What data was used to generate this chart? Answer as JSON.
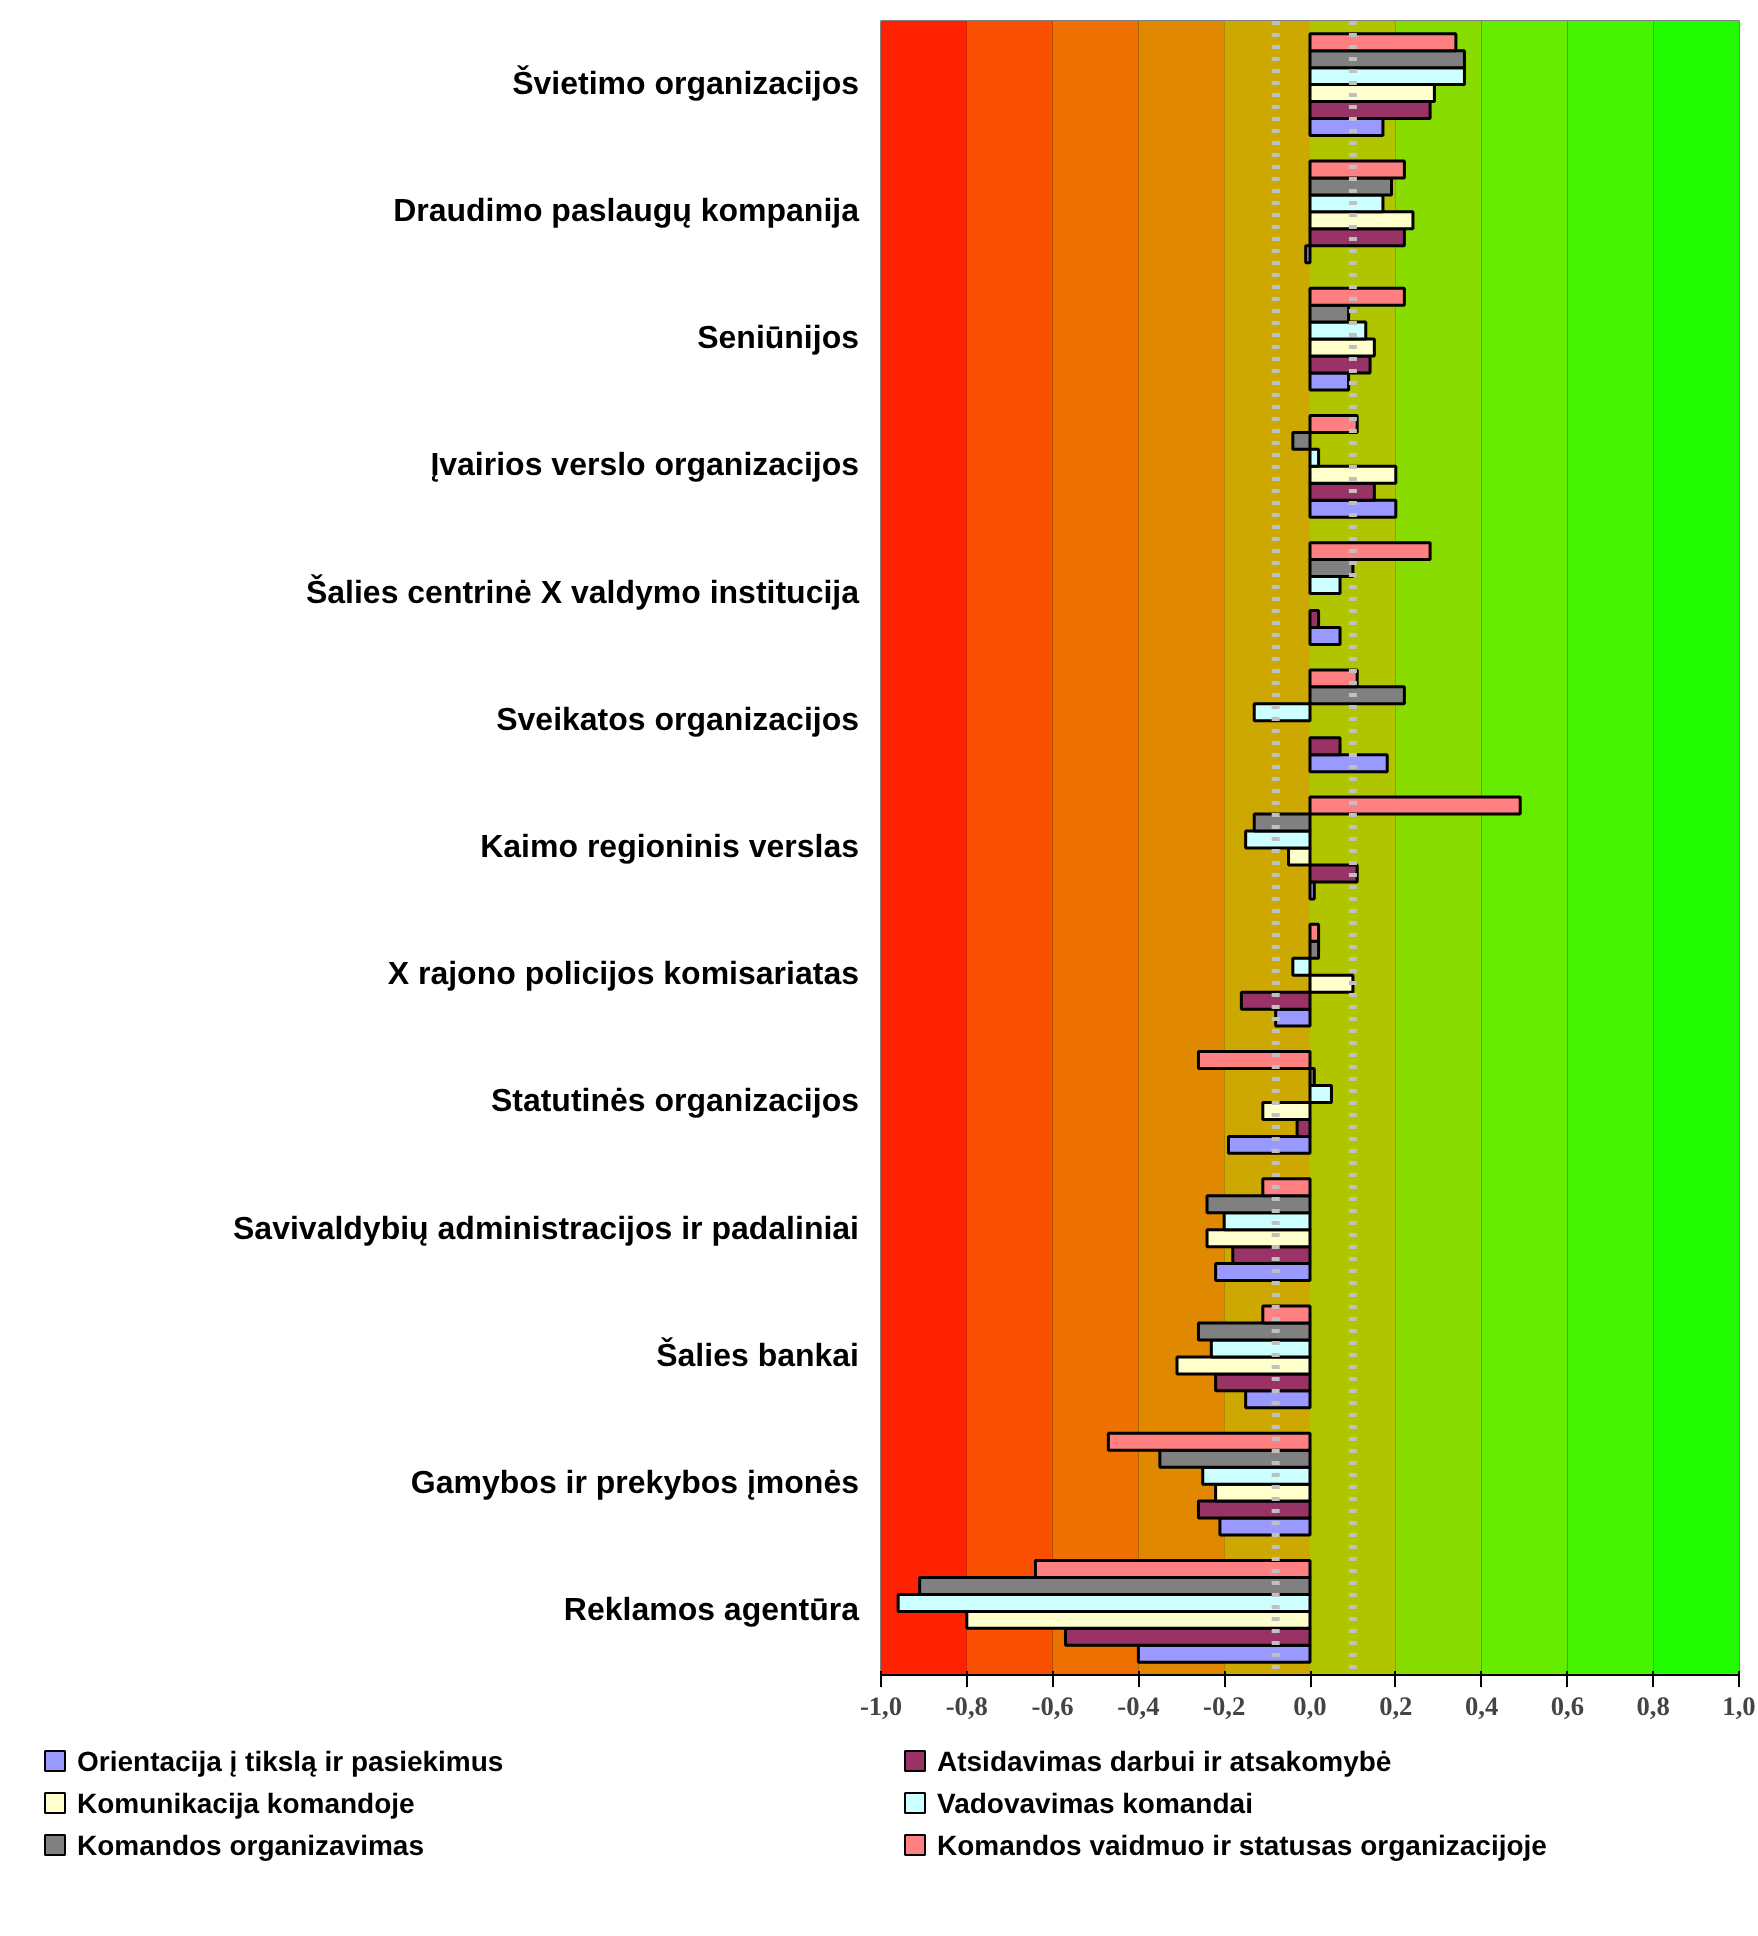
{
  "chart_data": {
    "type": "bar",
    "orientation": "horizontal",
    "categories": [
      "Švietimo organizacijos",
      "Draudimo paslaugų kompanija",
      "Seniūnijos",
      "Įvairios verslo organizacijos",
      "Šalies centrinė X valdymo institucija",
      "Sveikatos organizacijos",
      "Kaimo regioninis verslas",
      "X rajono policijos komisariatas",
      "Statutinės organizacijos",
      "Savivaldybių administracijos ir padaliniai",
      "Šalies bankai",
      "Gamybos ir prekybos įmonės",
      "Reklamos agentūra"
    ],
    "series": [
      {
        "name": "Orientacija į tikslą ir pasiekimus",
        "color": "#9999ff",
        "values": [
          0.17,
          -0.01,
          0.09,
          0.2,
          0.07,
          0.18,
          0.01,
          -0.08,
          -0.19,
          -0.22,
          -0.15,
          -0.21,
          -0.4
        ]
      },
      {
        "name": "Atsidavimas darbui ir atsakomybė",
        "color": "#993366",
        "values": [
          0.28,
          0.22,
          0.14,
          0.15,
          0.02,
          0.07,
          0.11,
          -0.16,
          -0.03,
          -0.18,
          -0.22,
          -0.26,
          -0.57
        ]
      },
      {
        "name": "Komunikacija komandoje",
        "color": "#ffffcc",
        "values": [
          0.29,
          0.24,
          0.15,
          0.2,
          null,
          null,
          -0.05,
          0.1,
          -0.11,
          -0.24,
          -0.31,
          -0.22,
          -0.8
        ]
      },
      {
        "name": "Vadovavimas komandai",
        "color": "#ccffff",
        "values": [
          0.36,
          0.17,
          0.13,
          0.02,
          0.07,
          -0.13,
          -0.15,
          -0.04,
          0.05,
          -0.2,
          -0.23,
          -0.25,
          -0.96
        ]
      },
      {
        "name": "Komandos organizavimas",
        "color": "#808080",
        "values": [
          0.36,
          0.19,
          0.09,
          -0.04,
          0.1,
          0.22,
          -0.13,
          0.02,
          0.01,
          -0.24,
          -0.26,
          -0.35,
          -0.91
        ]
      },
      {
        "name": "Komandos vaidmuo ir statusas organizacijoje",
        "color": "#ff8080",
        "values": [
          0.34,
          0.22,
          0.22,
          0.11,
          0.28,
          0.11,
          0.49,
          0.02,
          -0.26,
          -0.11,
          -0.11,
          -0.47,
          -0.64
        ]
      }
    ],
    "xlim": [
      -1.0,
      1.0
    ],
    "xticks": [
      {
        "value": -1.0,
        "label": "-1,0"
      },
      {
        "value": -0.8,
        "label": "-0,8"
      },
      {
        "value": -0.6,
        "label": "-0,6"
      },
      {
        "value": -0.4,
        "label": "-0,4"
      },
      {
        "value": -0.2,
        "label": "-0,2"
      },
      {
        "value": 0.0,
        "label": "0,0"
      },
      {
        "value": 0.2,
        "label": "0,2"
      },
      {
        "value": 0.4,
        "label": "0,4"
      },
      {
        "value": 0.6,
        "label": "0,6"
      },
      {
        "value": 0.8,
        "label": "0,8"
      },
      {
        "value": 1.0,
        "label": "1,0"
      }
    ],
    "grid": true,
    "legend": "bottom",
    "ref_lines": [
      {
        "axis": "x",
        "value": -0.08,
        "color": "#c0c0c0",
        "line_style": "dotted"
      },
      {
        "axis": "x",
        "value": 0.1,
        "color": "#c0c0c0",
        "line_style": "dotted"
      }
    ],
    "bands": [
      {
        "axis": "x",
        "from": -1.0,
        "to": -0.8,
        "color": "#ff2200"
      },
      {
        "axis": "x",
        "from": -0.8,
        "to": -0.6,
        "color": "#f85000"
      },
      {
        "axis": "x",
        "from": -0.6,
        "to": -0.4,
        "color": "#ee7000"
      },
      {
        "axis": "x",
        "from": -0.4,
        "to": -0.2,
        "color": "#e08800"
      },
      {
        "axis": "x",
        "from": -0.2,
        "to": 0.0,
        "color": "#cca800"
      },
      {
        "axis": "x",
        "from": 0.0,
        "to": 0.2,
        "color": "#b0c400"
      },
      {
        "axis": "x",
        "from": 0.2,
        "to": 0.4,
        "color": "#88dc00"
      },
      {
        "axis": "x",
        "from": 0.4,
        "to": 0.6,
        "color": "#66ec00"
      },
      {
        "axis": "x",
        "from": 0.6,
        "to": 0.8,
        "color": "#44f400"
      },
      {
        "axis": "x",
        "from": 0.8,
        "to": 1.0,
        "color": "#22fc00"
      }
    ]
  }
}
